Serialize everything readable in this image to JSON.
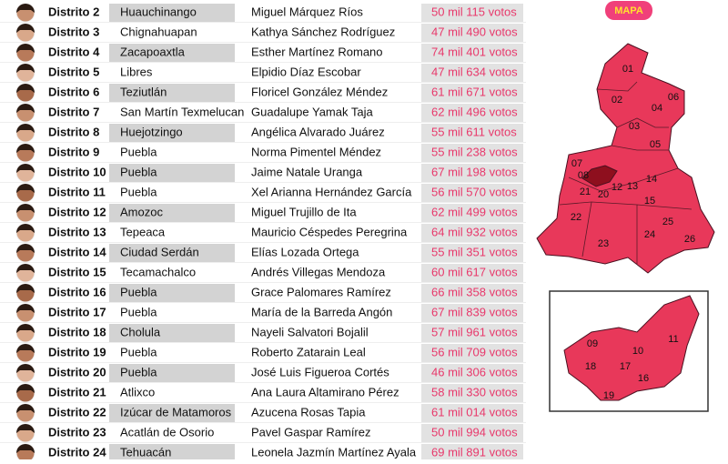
{
  "badge": "MAPA",
  "rows": [
    {
      "district": "Distrito 2",
      "city": "Huauchinango",
      "name": "Miguel Márquez Ríos",
      "votes": "50 mil 115 votos"
    },
    {
      "district": "Distrito 3",
      "city": "Chignahuapan",
      "name": "Kathya Sánchez Rodríguez",
      "votes": "47 mil 490 votos"
    },
    {
      "district": "Distrito 4",
      "city": "Zacapoaxtla",
      "name": "Esther Martínez Romano",
      "votes": "74 mil 401 votos"
    },
    {
      "district": "Distrito 5",
      "city": "Libres",
      "name": "Elpidio Díaz Escobar",
      "votes": "47 mil 634 votos"
    },
    {
      "district": "Distrito 6",
      "city": "Teziutlán",
      "name": "Floricel González Méndez",
      "votes": "61 mil 671 votos"
    },
    {
      "district": "Distrito 7",
      "city": "San Martín Texmelucan",
      "name": "Guadalupe Yamak Taja",
      "votes": "62 mil 496 votos"
    },
    {
      "district": "Distrito 8",
      "city": "Huejotzingo",
      "name": "Angélica Alvarado Juárez",
      "votes": "55 mil 611 votos"
    },
    {
      "district": "Distrito 9",
      "city": "Puebla",
      "name": "Norma Pimentel Méndez",
      "votes": "55 mil 238 votos"
    },
    {
      "district": "Distrito 10",
      "city": "Puebla",
      "name": "Jaime Natale Uranga",
      "votes": "67 mil 198 votos"
    },
    {
      "district": "Distrito 11",
      "city": "Puebla",
      "name": "Xel Arianna Hernández García",
      "votes": "56 mil 570 votos"
    },
    {
      "district": "Distrito 12",
      "city": "Amozoc",
      "name": "Miguel Trujillo de Ita",
      "votes": "62 mil 499 votos"
    },
    {
      "district": "Distrito 13",
      "city": "Tepeaca",
      "name": "Mauricio Céspedes Peregrina",
      "votes": "64 mil 932 votos"
    },
    {
      "district": "Distrito 14",
      "city": "Ciudad Serdán",
      "name": "Elías Lozada Ortega",
      "votes": "55 mil 351 votos"
    },
    {
      "district": "Distrito 15",
      "city": "Tecamachalco",
      "name": "Andrés Villegas Mendoza",
      "votes": "60 mil 617 votos"
    },
    {
      "district": "Distrito 16",
      "city": "Puebla",
      "name": "Grace Palomares Ramírez",
      "votes": "66 mil 358 votos"
    },
    {
      "district": "Distrito 17",
      "city": "Puebla",
      "name": "María de la Barreda Angón",
      "votes": "67 mil 839 votos"
    },
    {
      "district": "Distrito 18",
      "city": "Cholula",
      "name": "Nayeli Salvatori Bojalil",
      "votes": "57 mil 961 votos"
    },
    {
      "district": "Distrito 19",
      "city": "Puebla",
      "name": "Roberto Zatarain Leal",
      "votes": "56 mil 709 votos"
    },
    {
      "district": "Distrito 20",
      "city": "Puebla",
      "name": "José Luis Figueroa Cortés",
      "votes": "46 mil 306 votos"
    },
    {
      "district": "Distrito 21",
      "city": "Atlixco",
      "name": "Ana Laura Altamirano Pérez",
      "votes": "58 mil 330 votos"
    },
    {
      "district": "Distrito 22",
      "city": "Izúcar de Matamoros",
      "name": "Azucena Rosas Tapia",
      "votes": "61 mil 014 votos"
    },
    {
      "district": "Distrito 23",
      "city": "Acatlán de Osorio",
      "name": "Pavel Gaspar Ramírez",
      "votes": "50 mil 994 votos"
    },
    {
      "district": "Distrito 24",
      "city": "Tehuacán",
      "name": "Leonela Jazmín Martínez Ayala",
      "votes": "69 mil 891 votos"
    }
  ],
  "map_labels": [
    "01",
    "02",
    "04",
    "06",
    "03",
    "05",
    "07",
    "08",
    "21",
    "20",
    "12",
    "13",
    "14",
    "15",
    "22",
    "25",
    "24",
    "26",
    "23"
  ],
  "inset_labels": [
    "09",
    "10",
    "11",
    "18",
    "17",
    "16",
    "19"
  ]
}
